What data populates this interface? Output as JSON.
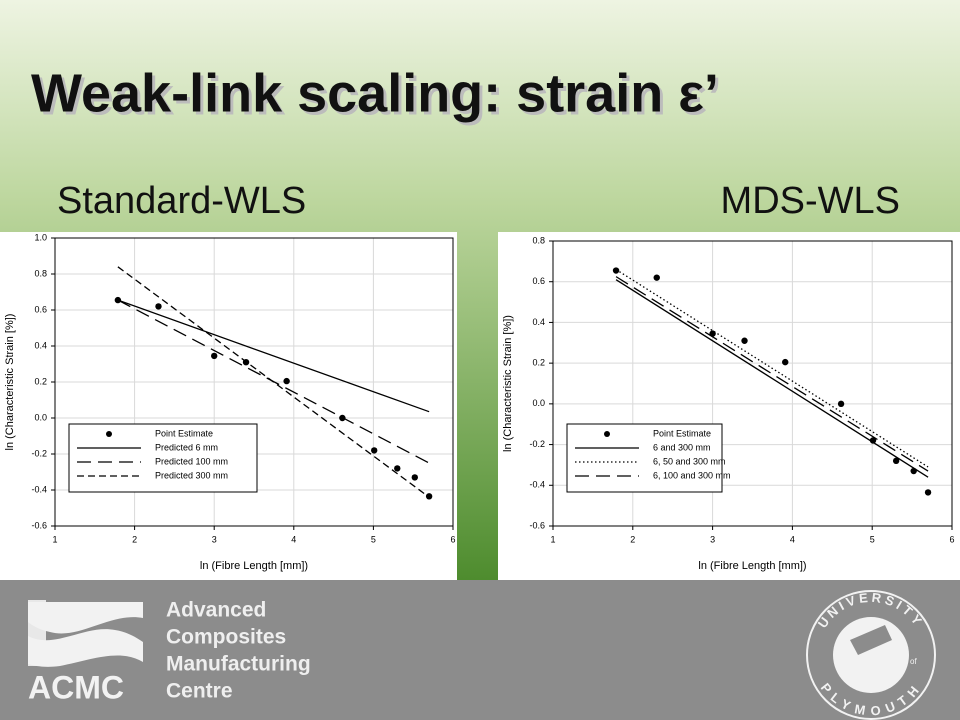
{
  "slide": {
    "title": "Weak-link scaling: strain ε’",
    "subtitles": [
      "Standard-WLS",
      "MDS-WLS"
    ],
    "footer": {
      "acronym": "ACMC",
      "lines": [
        "Advanced",
        "Composites",
        "Manufacturing",
        "Centre"
      ],
      "university_top": "UNIVERSITY",
      "university_of": "of",
      "university_bottom": "PLYMOUTH"
    }
  },
  "chart_data": [
    {
      "type": "scatter",
      "x_label": "ln (Fibre Length [mm])",
      "y_label": "ln (Characteristic Strain [%])",
      "xlim": [
        1,
        6
      ],
      "xticks": [
        1,
        2,
        3,
        4,
        5,
        6
      ],
      "ylim": [
        -0.6,
        1.0
      ],
      "yticks": [
        -0.6,
        -0.4,
        -0.2,
        {
          "value": 0,
          "label": "0.0"
        },
        0.2,
        0.4,
        0.6,
        0.8,
        {
          "value": 1,
          "label": "1.0"
        }
      ],
      "grid": true,
      "legend": "lower left",
      "series": [
        {
          "name": "Point Estimate",
          "style": "marker",
          "color": "#000000",
          "x": [
            1.79,
            2.3,
            3.0,
            3.4,
            3.91,
            4.61,
            5.01,
            5.3,
            5.52,
            5.7
          ],
          "values": [
            0.655,
            0.62,
            0.345,
            0.31,
            0.205,
            0.0,
            -0.18,
            -0.28,
            -0.33,
            -0.435
          ]
        },
        {
          "name": "Predicted 6 mm",
          "style": "solid",
          "color": "#000000",
          "x": [
            1.79,
            5.7
          ],
          "values": [
            0.655,
            0.035
          ]
        },
        {
          "name": "Predicted 100 mm",
          "style": "long-dash",
          "color": "#000000",
          "x": [
            1.79,
            5.7
          ],
          "values": [
            0.655,
            -0.25
          ]
        },
        {
          "name": "Predicted 300 mm",
          "style": "dash",
          "color": "#000000",
          "x": [
            1.79,
            5.7
          ],
          "values": [
            0.84,
            -0.44
          ]
        }
      ]
    },
    {
      "type": "scatter",
      "x_label": "ln (Fibre Length [mm])",
      "y_label": "ln (Characteristic Strain [%])",
      "xlim": [
        1,
        6
      ],
      "xticks": [
        1,
        2,
        3,
        4,
        5,
        6
      ],
      "ylim": [
        -0.6,
        0.8
      ],
      "yticks": [
        -0.6,
        -0.4,
        -0.2,
        {
          "value": 0,
          "label": "0.0"
        },
        0.2,
        0.4,
        0.6,
        0.8
      ],
      "grid": true,
      "legend": "lower left",
      "series": [
        {
          "name": "Point Estimate",
          "style": "marker",
          "color": "#000000",
          "x": [
            1.79,
            2.3,
            3.0,
            3.4,
            3.91,
            4.61,
            5.01,
            5.3,
            5.52,
            5.7
          ],
          "values": [
            0.655,
            0.62,
            0.345,
            0.31,
            0.205,
            0.0,
            -0.18,
            -0.28,
            -0.33,
            -0.435
          ]
        },
        {
          "name": "6 and 300 mm",
          "style": "solid",
          "color": "#000000",
          "x": [
            1.79,
            5.7
          ],
          "values": [
            0.61,
            -0.36
          ]
        },
        {
          "name": "6, 50 and 300 mm",
          "style": "dotted",
          "color": "#000000",
          "x": [
            1.79,
            5.7
          ],
          "values": [
            0.66,
            -0.31
          ]
        },
        {
          "name": "6, 100 and 300 mm",
          "style": "long-dash",
          "color": "#000000",
          "x": [
            1.79,
            5.7
          ],
          "values": [
            0.625,
            -0.33
          ]
        }
      ]
    }
  ]
}
